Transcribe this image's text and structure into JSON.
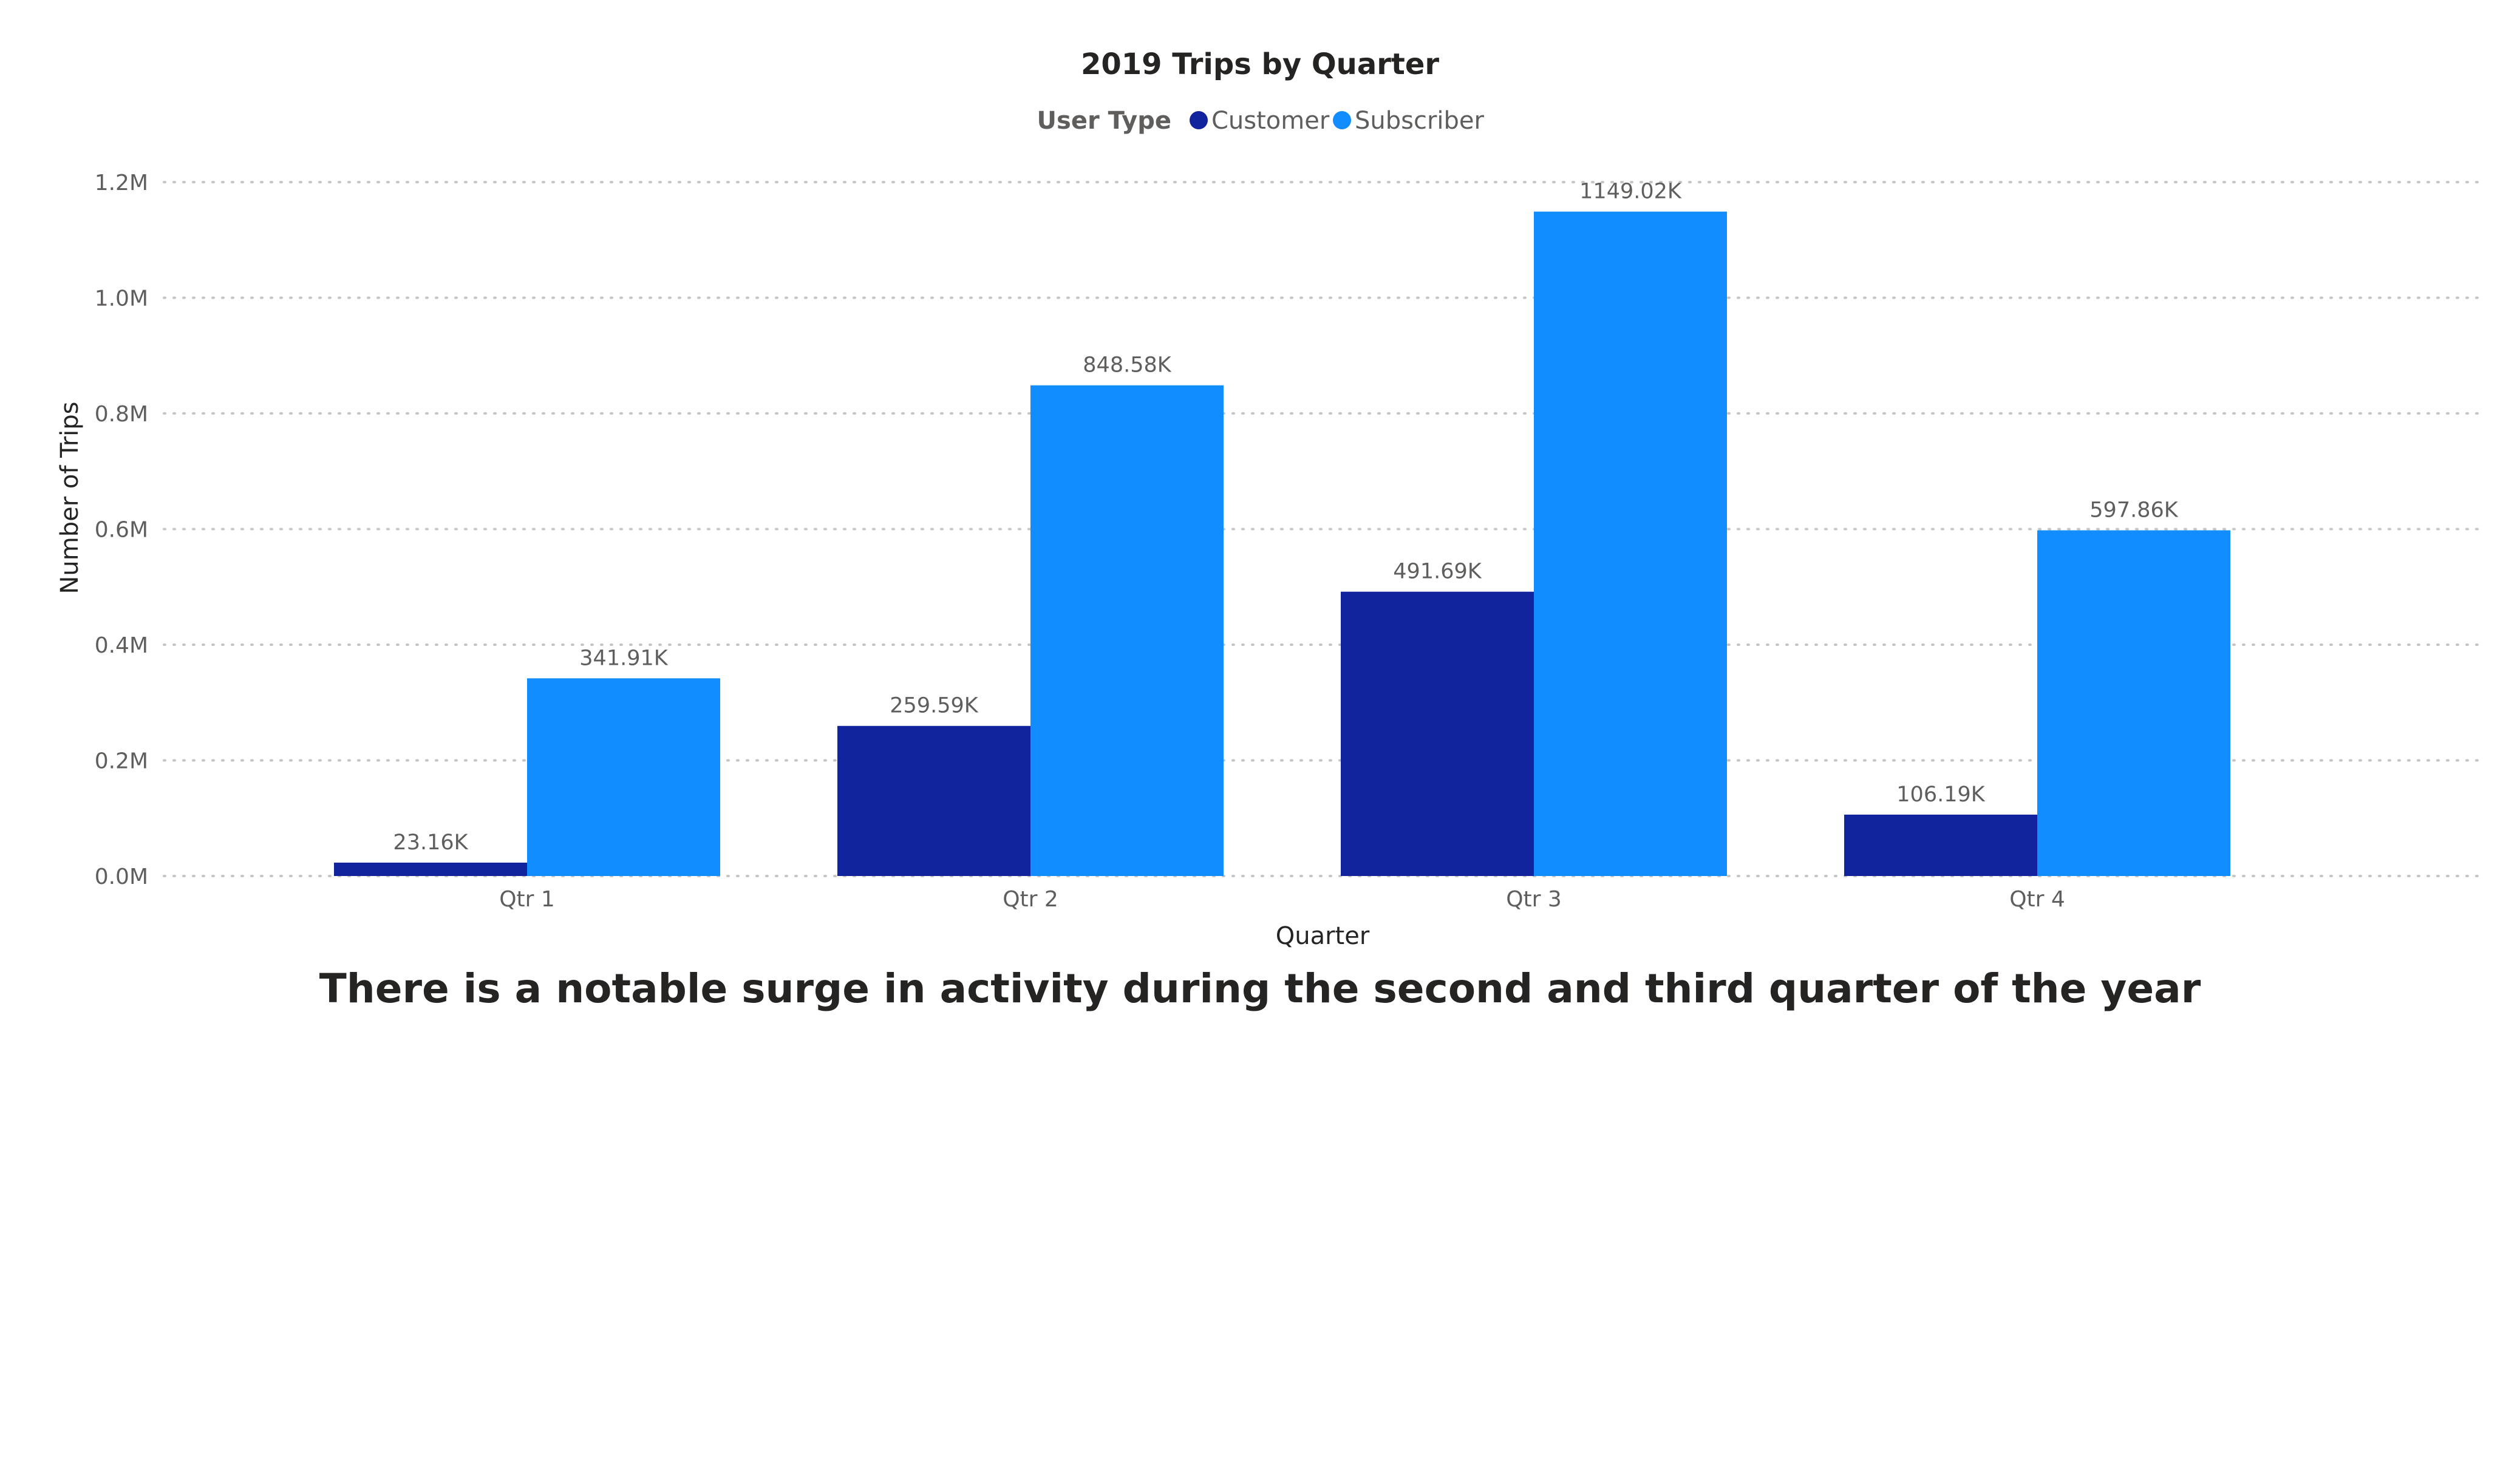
{
  "chart_data": {
    "type": "bar",
    "title": "2019 Trips by Quarter",
    "legend_title": "User Type",
    "legend_position": "top-center",
    "xlabel": "Quarter",
    "ylabel": "Number of Trips",
    "categories": [
      "Qtr 1",
      "Qtr 2",
      "Qtr 3",
      "Qtr 4"
    ],
    "series": [
      {
        "name": "Customer",
        "color": "#12239e",
        "values": [
          23160,
          259590,
          491690,
          106190
        ],
        "data_labels": [
          "23.16K",
          "259.59K",
          "491.69K",
          "106.19K"
        ]
      },
      {
        "name": "Subscriber",
        "color": "#118dff",
        "values": [
          341910,
          848580,
          1149020,
          597860
        ],
        "data_labels": [
          "341.91K",
          "848.58K",
          "1149.02K",
          "597.86K"
        ]
      }
    ],
    "ylim": [
      0,
      1200000
    ],
    "yticks": [
      0,
      200000,
      400000,
      600000,
      800000,
      1000000,
      1200000
    ],
    "ytick_labels": [
      "0.0M",
      "0.2M",
      "0.4M",
      "0.6M",
      "0.8M",
      "1.0M",
      "1.2M"
    ],
    "grid": true
  },
  "caption": "There is a notable surge in activity during the second and third quarter of the year"
}
